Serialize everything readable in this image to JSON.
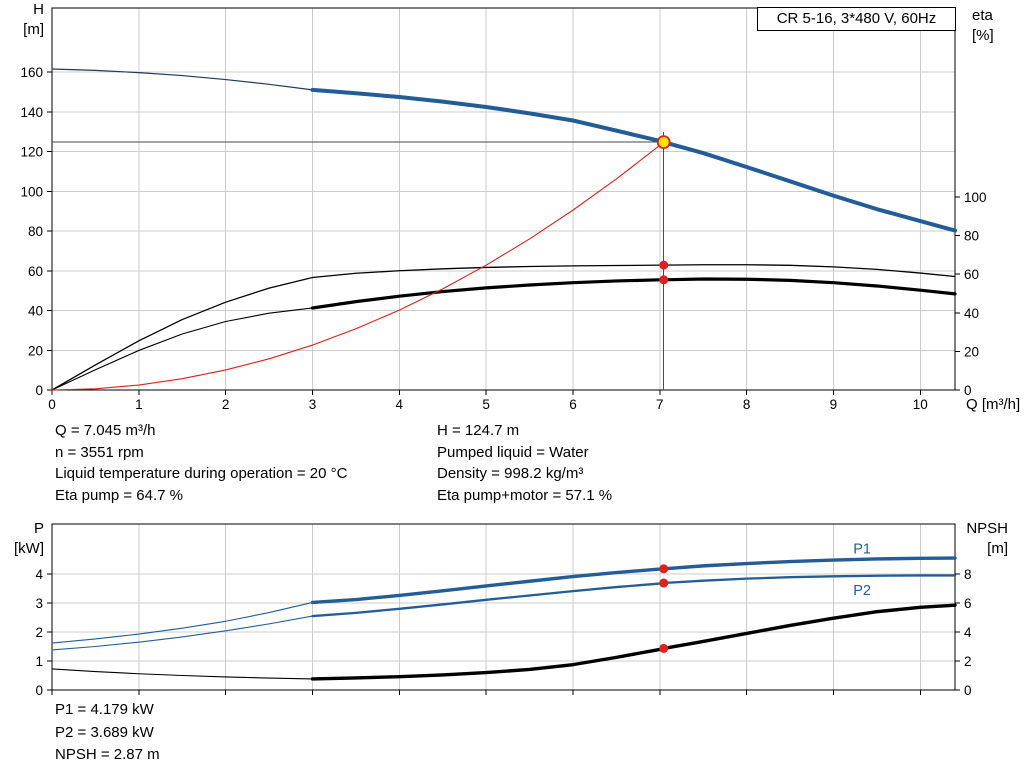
{
  "title_box": {
    "label": "CR 5-16, 3*480 V, 60Hz"
  },
  "colors": {
    "curve_blue": "#235d97",
    "curve_blue_dark": "#1f3b5c",
    "curve_black": "#000000",
    "system_red": "#e0201b",
    "dot_red": "#e0201b",
    "duty_fill": "#ffe400",
    "grid": "#cccccc",
    "axis": "#000000",
    "crosshair": "#4a4a4a"
  },
  "annotations": {
    "mid_left": [
      "Q = 7.045 m³/h",
      "n = 3551 rpm",
      "Liquid temperature during operation = 20 °C",
      "Eta pump = 64.7 %"
    ],
    "mid_right": [
      "H = 124.7 m",
      "Pumped liquid = Water",
      "Density = 998.2 kg/m³",
      "Eta pump+motor = 57.1 %"
    ],
    "bottom": [
      "P1 = 4.179 kW",
      "P2 = 3.689 kW",
      "NPSH = 2.87 m"
    ]
  },
  "chart_data": [
    {
      "type": "line",
      "title": "CR 5-16, 3*480 V, 60Hz",
      "x_axis": {
        "label": "Q [m³/h]",
        "range": [
          0,
          10.4
        ],
        "ticks": [
          0,
          1,
          2,
          3,
          4,
          5,
          6,
          7,
          8,
          9,
          10
        ],
        "show_tick_labels": true
      },
      "left_axis": {
        "label": "H",
        "unit": "[m]",
        "range": [
          0,
          160
        ],
        "ticks": [
          0,
          20,
          40,
          60,
          80,
          100,
          120,
          140,
          160
        ]
      },
      "right_axis": {
        "label": "eta",
        "unit": "[%]",
        "range": [
          0,
          100
        ],
        "ticks": [
          0,
          20,
          40,
          60,
          80,
          100
        ]
      },
      "grid": true,
      "crosshair": {
        "q": 7.045,
        "h": 124.7
      },
      "series": [
        {
          "name": "h-curve-extended",
          "axis": "left",
          "color": "#1f3b5c",
          "width": 1.2,
          "points": [
            [
              0,
              161.5
            ],
            [
              0.5,
              160.8
            ],
            [
              1,
              159.7
            ],
            [
              1.5,
              158.2
            ],
            [
              2,
              156.2
            ],
            [
              2.5,
              153.8
            ],
            [
              3,
              151
            ]
          ]
        },
        {
          "name": "h-curve",
          "axis": "left",
          "color": "#235d97",
          "width": 4,
          "points": [
            [
              3,
              151
            ],
            [
              3.5,
              149.3
            ],
            [
              4,
              147.4
            ],
            [
              4.5,
              145.1
            ],
            [
              5,
              142.4
            ],
            [
              5.5,
              139.2
            ],
            [
              6,
              135.6
            ],
            [
              6.5,
              130.5
            ],
            [
              7,
              125.3
            ],
            [
              7.045,
              124.7
            ],
            [
              7.5,
              119.2
            ],
            [
              8,
              112.2
            ],
            [
              8.5,
              105
            ],
            [
              9,
              97.8
            ],
            [
              9.5,
              91
            ],
            [
              10,
              85
            ],
            [
              10.4,
              80.2
            ]
          ]
        },
        {
          "name": "eta-pump",
          "axis": "right",
          "color": "#000000",
          "width": 1.3,
          "points": [
            [
              0,
              0
            ],
            [
              0.5,
              13
            ],
            [
              1,
              25.5
            ],
            [
              1.5,
              36.5
            ],
            [
              2,
              45.5
            ],
            [
              2.5,
              52.8
            ],
            [
              3,
              58.3
            ],
            [
              3.5,
              60.5
            ],
            [
              4,
              61.8
            ],
            [
              4.5,
              62.8
            ],
            [
              5,
              63.5
            ],
            [
              5.5,
              64
            ],
            [
              6,
              64.3
            ],
            [
              6.5,
              64.5
            ],
            [
              7,
              64.7
            ],
            [
              7.045,
              64.7
            ],
            [
              7.5,
              64.9
            ],
            [
              8,
              64.9
            ],
            [
              8.5,
              64.6
            ],
            [
              9,
              63.8
            ],
            [
              9.5,
              62.5
            ],
            [
              10,
              60.6
            ],
            [
              10.4,
              58.8
            ]
          ]
        },
        {
          "name": "eta-pump-motor-extended",
          "axis": "right",
          "color": "#000000",
          "width": 1.1,
          "points": [
            [
              0,
              0
            ],
            [
              0.5,
              10.5
            ],
            [
              1,
              20.5
            ],
            [
              1.5,
              29
            ],
            [
              2,
              35.5
            ],
            [
              2.5,
              39.8
            ],
            [
              3,
              42.5
            ]
          ]
        },
        {
          "name": "eta-pump-motor",
          "axis": "right",
          "color": "#000000",
          "width": 3.2,
          "points": [
            [
              3,
              42.5
            ],
            [
              3.5,
              45.8
            ],
            [
              4,
              48.6
            ],
            [
              4.5,
              51
            ],
            [
              5,
              52.9
            ],
            [
              5.5,
              54.4
            ],
            [
              6,
              55.6
            ],
            [
              6.5,
              56.5
            ],
            [
              7,
              57.1
            ],
            [
              7.045,
              57.1
            ],
            [
              7.5,
              57.5
            ],
            [
              8,
              57.4
            ],
            [
              8.5,
              56.8
            ],
            [
              9,
              55.6
            ],
            [
              9.5,
              53.9
            ],
            [
              10,
              51.7
            ],
            [
              10.4,
              49.8
            ]
          ]
        },
        {
          "name": "system-curve",
          "axis": "left",
          "color": "#e0201b",
          "width": 1.1,
          "points": [
            [
              0,
              0
            ],
            [
              0.5,
              0.6
            ],
            [
              1,
              2.5
            ],
            [
              1.5,
              5.7
            ],
            [
              2,
              10.1
            ],
            [
              2.5,
              15.7
            ],
            [
              3,
              22.6
            ],
            [
              3.5,
              30.8
            ],
            [
              4,
              40.2
            ],
            [
              4.5,
              50.9
            ],
            [
              5,
              62.8
            ],
            [
              5.5,
              76
            ],
            [
              6,
              90.5
            ],
            [
              6.5,
              106.2
            ],
            [
              7,
              123.1
            ],
            [
              7.045,
              124.7
            ]
          ]
        }
      ],
      "markers": [
        {
          "kind": "duty",
          "q": 7.045,
          "value": 124.7,
          "axis": "left"
        },
        {
          "kind": "dot",
          "q": 7.045,
          "value": 64.7,
          "axis": "right"
        },
        {
          "kind": "dot",
          "q": 7.045,
          "value": 57.1,
          "axis": "right"
        }
      ],
      "curve_labels": []
    },
    {
      "type": "line",
      "title": "",
      "x_axis": {
        "label": "",
        "range": [
          0,
          10.4
        ],
        "ticks": [
          0,
          1,
          2,
          3,
          4,
          5,
          6,
          7,
          8,
          9,
          10
        ],
        "show_tick_labels": false
      },
      "left_axis": {
        "label": "P",
        "unit": "[kW]",
        "range": [
          0,
          4
        ],
        "ticks": [
          0,
          1,
          2,
          3,
          4
        ]
      },
      "right_axis": {
        "label": "NPSH",
        "unit": "[m]",
        "range": [
          0,
          8
        ],
        "ticks": [
          0,
          2,
          4,
          6,
          8
        ]
      },
      "grid": true,
      "crosshair": null,
      "series": [
        {
          "name": "p1-curve-extended",
          "axis": "left",
          "color": "#235d97",
          "width": 1.1,
          "points": [
            [
              0,
              1.62
            ],
            [
              0.5,
              1.76
            ],
            [
              1,
              1.93
            ],
            [
              1.5,
              2.13
            ],
            [
              2,
              2.37
            ],
            [
              2.5,
              2.67
            ],
            [
              3,
              3.02
            ]
          ]
        },
        {
          "name": "p1-curve",
          "axis": "left",
          "color": "#235d97",
          "width": 3.4,
          "points": [
            [
              3,
              3.02
            ],
            [
              3.5,
              3.12
            ],
            [
              4,
              3.26
            ],
            [
              4.5,
              3.42
            ],
            [
              5,
              3.59
            ],
            [
              5.5,
              3.75
            ],
            [
              6,
              3.91
            ],
            [
              6.5,
              4.05
            ],
            [
              7,
              4.17
            ],
            [
              7.045,
              4.179
            ],
            [
              7.5,
              4.28
            ],
            [
              8,
              4.36
            ],
            [
              8.5,
              4.43
            ],
            [
              9,
              4.48
            ],
            [
              9.5,
              4.52
            ],
            [
              10,
              4.54
            ],
            [
              10.4,
              4.55
            ]
          ]
        },
        {
          "name": "p2-curve-extended",
          "axis": "left",
          "color": "#235d97",
          "width": 1.1,
          "points": [
            [
              0,
              1.38
            ],
            [
              0.5,
              1.5
            ],
            [
              1,
              1.65
            ],
            [
              1.5,
              1.83
            ],
            [
              2,
              2.04
            ],
            [
              2.5,
              2.28
            ],
            [
              3,
              2.55
            ]
          ]
        },
        {
          "name": "p2-curve",
          "axis": "left",
          "color": "#235d97",
          "width": 2.3,
          "points": [
            [
              3,
              2.55
            ],
            [
              3.5,
              2.66
            ],
            [
              4,
              2.8
            ],
            [
              4.5,
              2.95
            ],
            [
              5,
              3.11
            ],
            [
              5.5,
              3.26
            ],
            [
              6,
              3.41
            ],
            [
              6.5,
              3.55
            ],
            [
              7,
              3.67
            ],
            [
              7.045,
              3.689
            ],
            [
              7.5,
              3.77
            ],
            [
              8,
              3.84
            ],
            [
              8.5,
              3.89
            ],
            [
              9,
              3.92
            ],
            [
              9.5,
              3.94
            ],
            [
              10,
              3.95
            ],
            [
              10.4,
              3.95
            ]
          ]
        },
        {
          "name": "npsh-curve-extended",
          "axis": "right",
          "color": "#000000",
          "width": 1.1,
          "points": [
            [
              0,
              1.45
            ],
            [
              0.5,
              1.27
            ],
            [
              1,
              1.12
            ],
            [
              1.5,
              1
            ],
            [
              2,
              0.9
            ],
            [
              2.5,
              0.82
            ],
            [
              3,
              0.76
            ]
          ]
        },
        {
          "name": "npsh-curve",
          "axis": "right",
          "color": "#000000",
          "width": 3.4,
          "points": [
            [
              3,
              0.76
            ],
            [
              3.5,
              0.83
            ],
            [
              4,
              0.92
            ],
            [
              4.5,
              1.04
            ],
            [
              5,
              1.2
            ],
            [
              5.5,
              1.42
            ],
            [
              6,
              1.75
            ],
            [
              6.5,
              2.25
            ],
            [
              7,
              2.8
            ],
            [
              7.045,
              2.87
            ],
            [
              7.5,
              3.35
            ],
            [
              8,
              3.9
            ],
            [
              8.5,
              4.45
            ],
            [
              9,
              4.95
            ],
            [
              9.5,
              5.4
            ],
            [
              10,
              5.7
            ],
            [
              10.4,
              5.85
            ]
          ]
        }
      ],
      "markers": [
        {
          "kind": "dot",
          "q": 7.045,
          "value": 4.179,
          "axis": "left"
        },
        {
          "kind": "dot",
          "q": 7.045,
          "value": 3.689,
          "axis": "left"
        },
        {
          "kind": "dot",
          "q": 7.045,
          "value": 2.87,
          "axis": "right"
        }
      ],
      "curve_labels": [
        {
          "text": "P1",
          "q": 9.33,
          "v": 4.88,
          "axis": "left",
          "color": "#235d97"
        },
        {
          "text": "P2",
          "q": 9.33,
          "v": 3.44,
          "axis": "left",
          "color": "#235d97"
        }
      ]
    }
  ]
}
